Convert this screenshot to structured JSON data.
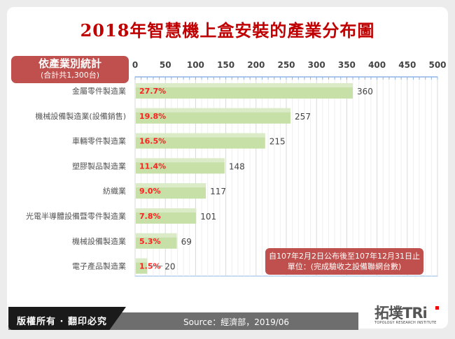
{
  "title": "2018年智慧機上盒安裝的產業分布圖",
  "category_box": {
    "title": "依產業別統計",
    "subtitle": "(合計共1,300台)"
  },
  "note": {
    "line1": "自107年2月2日公布後至107年12月31日止",
    "line2": "單位：(完成驗收之設備聯網台數)"
  },
  "footer": {
    "copyright": "版權所有 · 翻印必究",
    "source": "Source：經濟部，2019/06"
  },
  "logo": {
    "brand": "拓墣TRi",
    "tagline": "TOPOLOGY RESEARCH INSTITUTE"
  },
  "colors": {
    "bar": "#c6e0a8",
    "percent_label": "#ff2020",
    "title": "#c00000",
    "box": "#c0504d",
    "axis": "#8eb4e3"
  },
  "chart_data": {
    "type": "bar",
    "orientation": "horizontal",
    "categories": [
      "金屬零件製造業",
      "機械設備製造業(設備銷售)",
      "車輛零件製造業",
      "塑膠製品製造業",
      "紡織業",
      "光電半導體設備暨零件製造業",
      "機械設備製造業",
      "電子產品製造業"
    ],
    "values": [
      360,
      257,
      215,
      148,
      117,
      101,
      69,
      20
    ],
    "percent_labels": [
      "27.7%",
      "19.8%",
      "16.5%",
      "11.4%",
      "9.0%",
      "7.8%",
      "5.3%",
      "1.5%"
    ],
    "xlim": [
      0,
      500
    ],
    "xticks": [
      "0",
      "50",
      "100",
      "150",
      "200",
      "250",
      "300",
      "350",
      "400",
      "450",
      "500"
    ],
    "grid": true,
    "xaxis_position": "top"
  }
}
